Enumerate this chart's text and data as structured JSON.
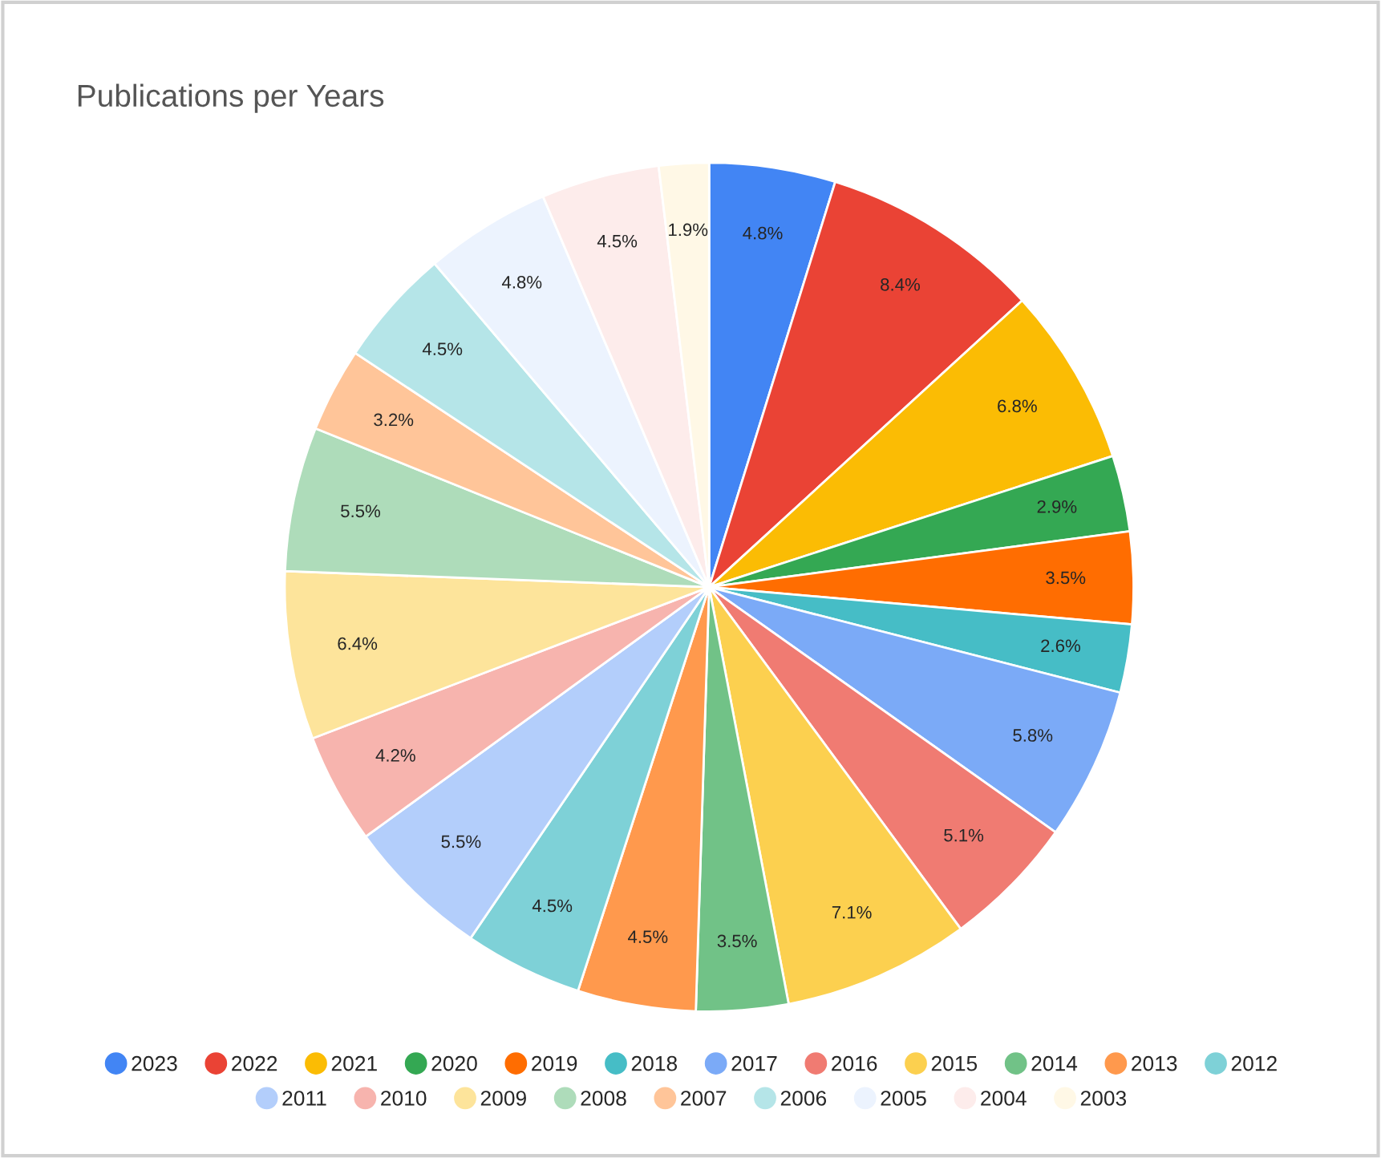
{
  "chart_data": {
    "type": "pie",
    "title": "Publications per Years",
    "categories": [
      "2023",
      "2022",
      "2021",
      "2020",
      "2019",
      "2018",
      "2017",
      "2016",
      "2015",
      "2014",
      "2013",
      "2012",
      "2011",
      "2010",
      "2009",
      "2008",
      "2007",
      "2006",
      "2005",
      "2004",
      "2003"
    ],
    "values": [
      4.8,
      8.4,
      6.8,
      2.9,
      3.5,
      2.6,
      5.8,
      5.1,
      7.1,
      3.5,
      4.5,
      4.5,
      5.5,
      4.2,
      6.4,
      5.5,
      3.2,
      4.5,
      4.8,
      4.5,
      1.9
    ],
    "value_labels": [
      "4.8%",
      "8.4%",
      "6.8%",
      "2.9%",
      "3.5%",
      "2.6%",
      "5.8%",
      "5.1%",
      "7.1%",
      "3.5%",
      "4.5%",
      "4.5%",
      "5.5%",
      "4.2%",
      "6.4%",
      "5.5%",
      "3.2%",
      "4.5%",
      "4.8%",
      "4.5%",
      "1.9%"
    ],
    "colors": [
      "#4285f4",
      "#ea4335",
      "#fbbc04",
      "#34a853",
      "#ff6d01",
      "#46bdc6",
      "#7baaf7",
      "#f07b72",
      "#fcd04f",
      "#71c287",
      "#ff994d",
      "#7ed1d7",
      "#b3cefb",
      "#f7b4ae",
      "#fde49b",
      "#aedcba",
      "#ffc599",
      "#b5e5e8",
      "#ecf3fe",
      "#fdeceb",
      "#fff8e6"
    ],
    "legend": "bottom"
  }
}
